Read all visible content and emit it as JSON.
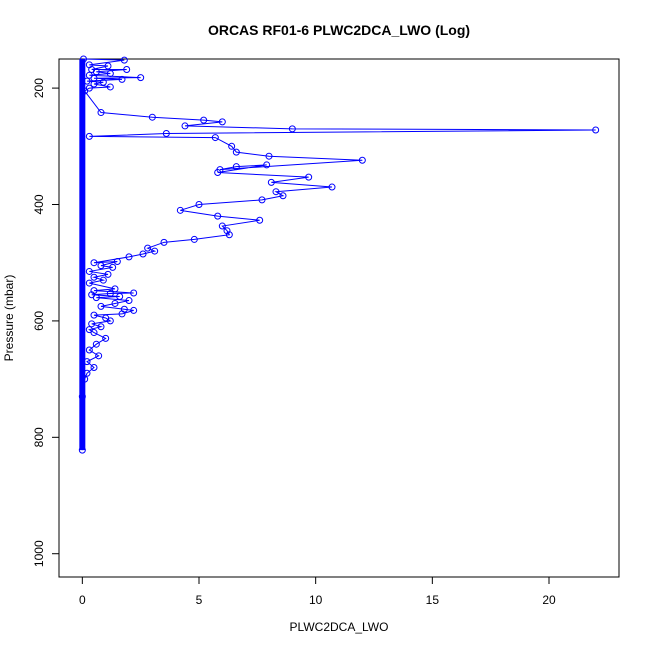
{
  "chart_data": {
    "type": "line",
    "title": "ORCAS RF01-6 PLWC2DCA_LWO (Log)",
    "xlabel": "PLWC2DCA_LWO",
    "ylabel": "Pressure (mbar)",
    "xlim": [
      -1,
      23
    ],
    "ylim": [
      1040,
      150
    ],
    "y_reversed": true,
    "grid": false,
    "line_color": "#0000ff",
    "marker_color": "#0000ff",
    "marker": "open-circle",
    "x_ticks": [
      0,
      5,
      10,
      15,
      20
    ],
    "y_ticks": [
      200,
      400,
      600,
      800,
      1000
    ],
    "series": [
      {
        "points": [
          [
            0.05,
            150
          ],
          [
            1.8,
            152
          ],
          [
            0.3,
            160
          ],
          [
            1.1,
            162
          ],
          [
            0.4,
            168
          ],
          [
            1.9,
            168
          ],
          [
            0.6,
            172
          ],
          [
            1.2,
            175
          ],
          [
            0.3,
            178
          ],
          [
            2.5,
            182
          ],
          [
            0.5,
            183
          ],
          [
            1.7,
            185
          ],
          [
            0.2,
            188
          ],
          [
            0.9,
            190
          ],
          [
            0.5,
            193
          ],
          [
            1.2,
            198
          ],
          [
            0.3,
            200
          ],
          [
            0.1,
            205
          ],
          [
            0.8,
            242
          ],
          [
            3.0,
            250
          ],
          [
            5.2,
            255
          ],
          [
            6.0,
            258
          ],
          [
            4.4,
            265
          ],
          [
            9.0,
            270
          ],
          [
            22.0,
            272
          ],
          [
            3.6,
            278
          ],
          [
            0.3,
            283
          ],
          [
            5.7,
            285
          ],
          [
            6.4,
            300
          ],
          [
            6.6,
            310
          ],
          [
            8.0,
            317
          ],
          [
            12.0,
            324
          ],
          [
            5.9,
            340
          ],
          [
            6.6,
            335
          ],
          [
            7.9,
            332
          ],
          [
            5.8,
            345
          ],
          [
            9.7,
            353
          ],
          [
            8.1,
            362
          ],
          [
            10.7,
            370
          ],
          [
            8.3,
            378
          ],
          [
            8.6,
            385
          ],
          [
            7.7,
            392
          ],
          [
            5.0,
            400
          ],
          [
            4.2,
            410
          ],
          [
            5.8,
            420
          ],
          [
            7.6,
            427
          ],
          [
            6.0,
            437
          ],
          [
            6.2,
            445
          ],
          [
            6.3,
            452
          ],
          [
            4.8,
            460
          ],
          [
            3.5,
            465
          ],
          [
            2.8,
            475
          ],
          [
            3.1,
            480
          ],
          [
            2.6,
            485
          ],
          [
            2.0,
            490
          ],
          [
            0.5,
            500
          ],
          [
            1.5,
            498
          ],
          [
            0.8,
            505
          ],
          [
            1.3,
            508
          ],
          [
            0.3,
            515
          ],
          [
            1.1,
            520
          ],
          [
            0.5,
            525
          ],
          [
            0.9,
            530
          ],
          [
            0.3,
            535
          ],
          [
            1.4,
            545
          ],
          [
            0.5,
            548
          ],
          [
            2.2,
            552
          ],
          [
            1.2,
            553
          ],
          [
            0.4,
            555
          ],
          [
            1.6,
            558
          ],
          [
            0.6,
            560
          ],
          [
            2.0,
            565
          ],
          [
            1.4,
            570
          ],
          [
            0.8,
            575
          ],
          [
            1.8,
            580
          ],
          [
            2.2,
            582
          ],
          [
            1.7,
            588
          ],
          [
            0.5,
            590
          ],
          [
            1.0,
            595
          ],
          [
            1.2,
            600
          ],
          [
            0.4,
            605
          ],
          [
            0.8,
            610
          ],
          [
            0.3,
            615
          ],
          [
            0.5,
            620
          ],
          [
            1.0,
            630
          ],
          [
            0.6,
            640
          ],
          [
            0.3,
            650
          ],
          [
            0.7,
            660
          ],
          [
            0.2,
            670
          ],
          [
            0.5,
            680
          ],
          [
            0.2,
            690
          ],
          [
            0.1,
            700
          ],
          [
            0.0,
            730
          ],
          [
            0.0,
            822
          ]
        ]
      }
    ]
  }
}
